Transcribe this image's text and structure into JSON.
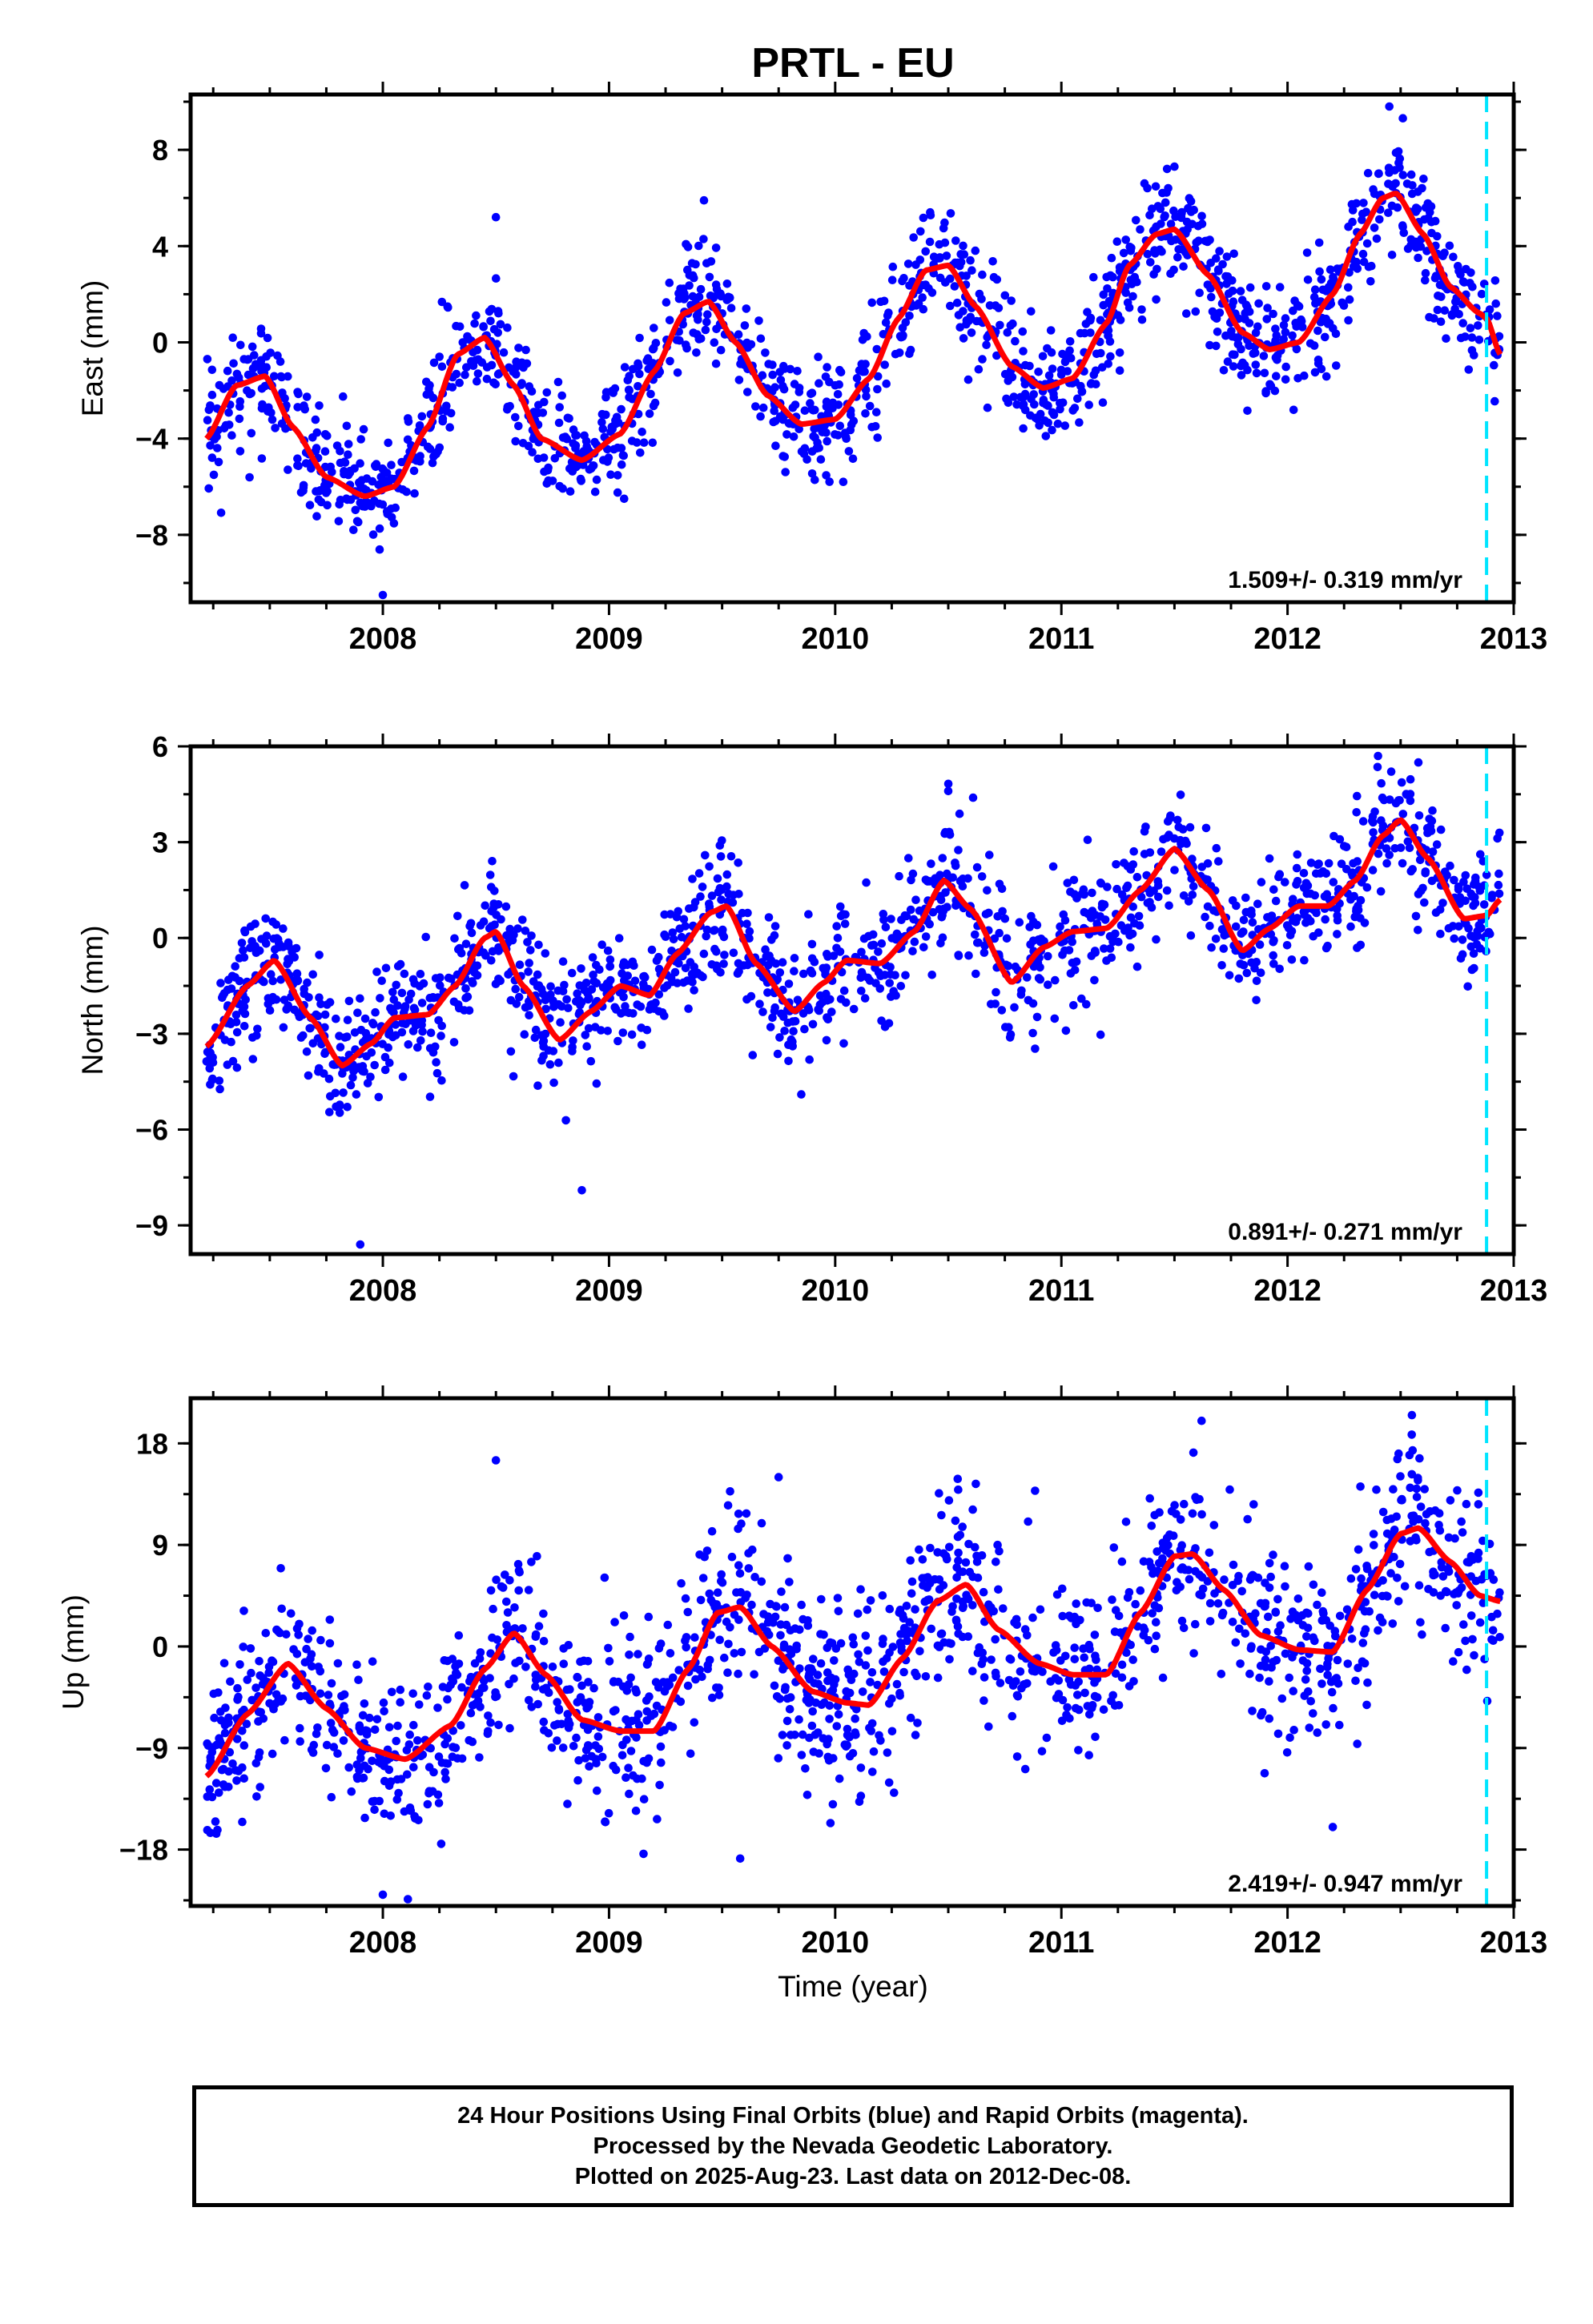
{
  "figure": {
    "title": "PRTL - EU",
    "xlabel": "Time (year)"
  },
  "chart_data": [
    {
      "type": "scatter",
      "component": "east",
      "ylabel": "East (mm)",
      "xlim": [
        2007.15,
        2013.0
      ],
      "ylim": [
        -10.8,
        10.3
      ],
      "yticks": [
        -8,
        -4,
        0,
        4,
        8
      ],
      "xticks": [
        2008,
        2009,
        2010,
        2011,
        2012,
        2013
      ],
      "rate_label": "1.509+/- 0.319 mm/yr",
      "colors": {
        "points": "#0000ff",
        "model": "#ff0000",
        "marker": "#00e5ff"
      },
      "vline_x": 2012.88,
      "data_range": [
        2007.22,
        2012.94
      ],
      "model": {
        "x": [
          2007.22,
          2007.35,
          2007.48,
          2007.6,
          2007.75,
          2007.92,
          2008.05,
          2008.2,
          2008.33,
          2008.45,
          2008.58,
          2008.7,
          2008.88,
          2009.05,
          2009.2,
          2009.33,
          2009.44,
          2009.56,
          2009.7,
          2009.85,
          2010.0,
          2010.15,
          2010.28,
          2010.4,
          2010.5,
          2010.62,
          2010.78,
          2010.92,
          2011.05,
          2011.2,
          2011.3,
          2011.42,
          2011.5,
          2011.65,
          2011.8,
          2011.92,
          2012.05,
          2012.2,
          2012.32,
          2012.42,
          2012.48,
          2012.6,
          2012.72,
          2012.85,
          2012.88,
          2012.94
        ],
        "y": [
          -4.0,
          -1.8,
          -1.4,
          -3.5,
          -5.6,
          -6.4,
          -6.0,
          -3.5,
          -0.5,
          0.2,
          -1.8,
          -4.0,
          -4.9,
          -3.8,
          -1.2,
          1.2,
          1.7,
          0.0,
          -2.2,
          -3.4,
          -3.2,
          -1.5,
          1.0,
          3.0,
          3.2,
          1.5,
          -1.0,
          -1.9,
          -1.5,
          0.8,
          3.2,
          4.5,
          4.7,
          2.8,
          0.4,
          -0.3,
          0.0,
          2.0,
          4.5,
          6.0,
          6.2,
          4.5,
          2.3,
          1.2,
          1.0,
          -0.5
        ]
      },
      "noise": 1.2,
      "outliers": [
        [
          2012.45,
          9.8
        ],
        [
          2009.42,
          5.9
        ],
        [
          2011.5,
          7.3
        ],
        [
          2008.0,
          -10.5
        ],
        [
          2010.42,
          5.4
        ],
        [
          2008.5,
          5.2
        ]
      ]
    },
    {
      "type": "scatter",
      "component": "north",
      "ylabel": "North (mm)",
      "xlim": [
        2007.15,
        2013.0
      ],
      "ylim": [
        -9.9,
        6.0
      ],
      "yticks": [
        -9,
        -6,
        -3,
        0,
        3,
        6
      ],
      "xticks": [
        2008,
        2009,
        2010,
        2011,
        2012,
        2013
      ],
      "rate_label": "0.891+/- 0.271 mm/yr",
      "colors": {
        "points": "#0000ff",
        "model": "#ff0000",
        "marker": "#00e5ff"
      },
      "vline_x": 2012.88,
      "data_range": [
        2007.22,
        2012.94
      ],
      "model": {
        "x": [
          2007.22,
          2007.4,
          2007.52,
          2007.68,
          2007.82,
          2007.95,
          2008.05,
          2008.2,
          2008.32,
          2008.45,
          2008.5,
          2008.62,
          2008.78,
          2008.92,
          2009.05,
          2009.18,
          2009.3,
          2009.45,
          2009.52,
          2009.65,
          2009.82,
          2009.95,
          2010.05,
          2010.2,
          2010.35,
          2010.48,
          2010.6,
          2010.78,
          2010.92,
          2011.05,
          2011.2,
          2011.35,
          2011.5,
          2011.65,
          2011.8,
          2011.92,
          2012.05,
          2012.18,
          2012.3,
          2012.42,
          2012.5,
          2012.62,
          2012.78,
          2012.88,
          2012.94
        ],
        "y": [
          -3.4,
          -1.5,
          -0.7,
          -2.5,
          -4.0,
          -3.3,
          -2.5,
          -2.4,
          -1.5,
          0.0,
          0.2,
          -1.5,
          -3.2,
          -2.3,
          -1.5,
          -1.8,
          -0.5,
          0.8,
          1.0,
          -0.8,
          -2.3,
          -1.4,
          -0.7,
          -0.8,
          0.2,
          1.8,
          0.9,
          -1.4,
          -0.3,
          0.2,
          0.3,
          1.5,
          2.8,
          1.5,
          -0.4,
          0.3,
          1.0,
          1.0,
          1.8,
          3.2,
          3.7,
          2.5,
          0.6,
          0.7,
          1.2
        ]
      },
      "noise": 1.0,
      "outliers": [
        [
          2007.9,
          -9.6
        ],
        [
          2008.88,
          -7.9
        ],
        [
          2012.4,
          5.7
        ],
        [
          2009.85,
          -4.9
        ],
        [
          2010.5,
          4.6
        ]
      ]
    },
    {
      "type": "scatter",
      "component": "up",
      "ylabel": "Up (mm)",
      "xlim": [
        2007.15,
        2013.0
      ],
      "ylim": [
        -23.0,
        22.0
      ],
      "yticks": [
        -18,
        -9,
        0,
        9,
        18
      ],
      "xticks": [
        2008,
        2009,
        2010,
        2011,
        2012,
        2013
      ],
      "rate_label": "2.419+/- 0.947 mm/yr",
      "colors": {
        "points": "#0000ff",
        "model": "#ff0000",
        "marker": "#00e5ff"
      },
      "vline_x": 2012.88,
      "data_range": [
        2007.22,
        2012.94
      ],
      "model": {
        "x": [
          2007.22,
          2007.4,
          2007.58,
          2007.75,
          2007.92,
          2008.1,
          2008.3,
          2008.45,
          2008.58,
          2008.72,
          2008.88,
          2009.05,
          2009.2,
          2009.35,
          2009.48,
          2009.58,
          2009.72,
          2009.9,
          2010.05,
          2010.15,
          2010.3,
          2010.45,
          2010.58,
          2010.72,
          2010.9,
          2011.05,
          2011.2,
          2011.35,
          2011.5,
          2011.58,
          2011.72,
          2011.88,
          2012.05,
          2012.2,
          2012.35,
          2012.5,
          2012.58,
          2012.72,
          2012.85,
          2012.94
        ],
        "y": [
          -11.5,
          -6.0,
          -1.5,
          -5.5,
          -9.0,
          -10.0,
          -7.0,
          -2.0,
          1.2,
          -2.5,
          -6.5,
          -7.5,
          -7.5,
          -2.0,
          3.0,
          3.5,
          0.0,
          -4.0,
          -5.0,
          -5.2,
          -1.0,
          4.0,
          5.5,
          1.5,
          -1.5,
          -2.5,
          -2.5,
          3.0,
          8.0,
          8.2,
          5.0,
          1.0,
          -0.3,
          -0.5,
          5.0,
          10.0,
          10.5,
          7.5,
          4.5,
          4.0
        ]
      },
      "noise": 4.0,
      "outliers": [
        [
          2011.62,
          20.0
        ],
        [
          2012.55,
          20.5
        ],
        [
          2009.58,
          -18.8
        ],
        [
          2008.0,
          -22.0
        ],
        [
          2012.2,
          -16.0
        ],
        [
          2008.5,
          16.5
        ],
        [
          2009.75,
          15.0
        ]
      ]
    }
  ],
  "caption": {
    "line1": "24 Hour Positions Using Final Orbits (blue) and Rapid Orbits (magenta).",
    "line2": "Processed by the Nevada Geodetic Laboratory.",
    "line3": "Plotted on 2025-Aug-23. Last data on 2012-Dec-08."
  }
}
